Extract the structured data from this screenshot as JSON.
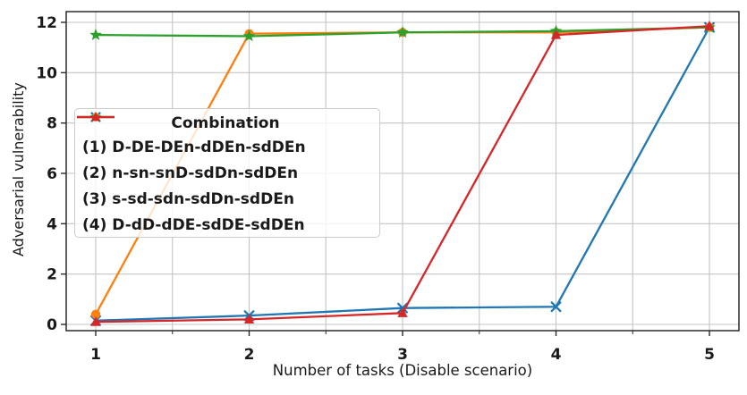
{
  "chart_data": {
    "type": "line",
    "title": "",
    "xlabel": "Number of tasks (Disable scenario)",
    "ylabel": "Adversarial vulnerability",
    "x": [
      1,
      2,
      3,
      4,
      5
    ],
    "xticks": [
      1,
      2,
      3,
      4,
      5
    ],
    "minor_xticks": [
      1.5,
      2.5,
      3.5,
      4.5
    ],
    "yticks": [
      0,
      2,
      4,
      6,
      8,
      10,
      12
    ],
    "xlim": [
      0.81,
      5.19
    ],
    "ylim": [
      -0.25,
      12.4
    ],
    "grid": true,
    "legend": {
      "title": "Combination",
      "position": "center-left"
    },
    "series": [
      {
        "name": "(1) D-DE-DEn-dDEn-sdDEn",
        "color": "#1f77b4",
        "marker": "x",
        "values": [
          0.15,
          0.35,
          0.65,
          0.7,
          11.8
        ]
      },
      {
        "name": "(2) n-sn-snD-sdDn-sdDEn",
        "color": "#ff7f0e",
        "marker": "circle",
        "values": [
          0.4,
          11.55,
          11.6,
          11.6,
          11.8
        ]
      },
      {
        "name": "(3) s-sd-sdn-sdDn-sdDEn",
        "color": "#2ca02c",
        "marker": "star",
        "values": [
          11.5,
          11.45,
          11.6,
          11.65,
          11.8
        ]
      },
      {
        "name": "(4) D-dD-dDE-sdDE-sdDEn",
        "color": "#d62728",
        "marker": "triangle",
        "values": [
          0.1,
          0.2,
          0.45,
          11.5,
          11.85
        ]
      }
    ]
  }
}
